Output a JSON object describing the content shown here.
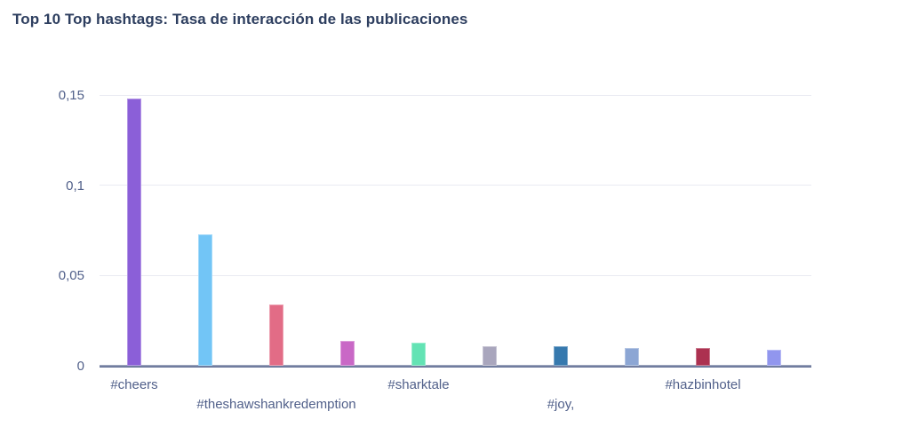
{
  "title": "Top 10 Top hashtags: Tasa de interacción de las publicaciones",
  "colors": {
    "title_text": "#2d3e5f",
    "tick_text": "#51608a",
    "gridline": "#e9ebf2",
    "axis_line": "#5d6a90",
    "background": "#ffffff"
  },
  "chart_data": {
    "type": "bar",
    "title": "Top 10 Top hashtags: Tasa de interacción de las publicaciones",
    "xlabel": "",
    "ylabel": "",
    "ylim": [
      0,
      0.15
    ],
    "grid": "horizontal",
    "legend_position": "none",
    "decimal_separator": ",",
    "y_ticks": [
      {
        "value": 0,
        "label": "0"
      },
      {
        "value": 0.05,
        "label": "0,05"
      },
      {
        "value": 0.1,
        "label": "0,1"
      },
      {
        "value": 0.15,
        "label": "0,15"
      }
    ],
    "bars": [
      {
        "label": "#cheers",
        "value": 0.148,
        "color": "#8b5fd8",
        "label_row": 1
      },
      {
        "label": "",
        "value": 0.073,
        "color": "#72c5f6",
        "label_row": 0
      },
      {
        "label": "#theshawshankredemption",
        "value": 0.034,
        "color": "#e26c86",
        "label_row": 2
      },
      {
        "label": "",
        "value": 0.014,
        "color": "#c968c6",
        "label_row": 0
      },
      {
        "label": "#sharktale",
        "value": 0.013,
        "color": "#63e3b4",
        "label_row": 1
      },
      {
        "label": "",
        "value": 0.011,
        "color": "#a9a6bd",
        "label_row": 0
      },
      {
        "label": "#joy,",
        "value": 0.011,
        "color": "#3679ae",
        "label_row": 2
      },
      {
        "label": "",
        "value": 0.01,
        "color": "#8ca6d4",
        "label_row": 0
      },
      {
        "label": "#hazbinhotel",
        "value": 0.01,
        "color": "#ac3150",
        "label_row": 1
      },
      {
        "label": "",
        "value": 0.009,
        "color": "#9196ee",
        "label_row": 0
      }
    ]
  }
}
